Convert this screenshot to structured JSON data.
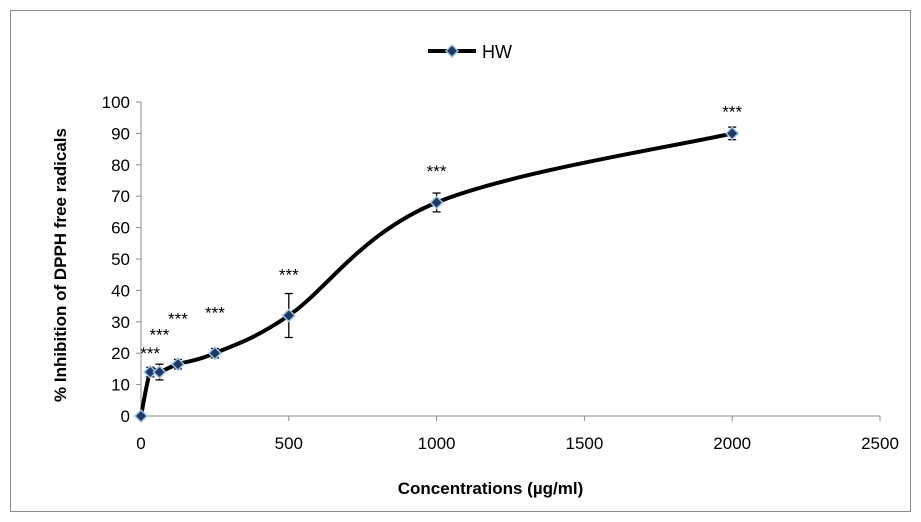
{
  "chart_data": {
    "type": "line",
    "xlabel": "Concentrations (µg/ml)",
    "ylabel": "% Inhibition of DPPH free radicals",
    "xlim": [
      0,
      2500
    ],
    "ylim": [
      0,
      100
    ],
    "xticks": [
      0,
      500,
      1000,
      1500,
      2000,
      2500
    ],
    "yticks": [
      0,
      10,
      20,
      30,
      40,
      50,
      60,
      70,
      80,
      90,
      100
    ],
    "grid": false,
    "legend": "top-center",
    "line_style": "smoothed",
    "series": [
      {
        "name": "HW",
        "color": "#000000",
        "marker": "diamond",
        "marker_fill": "#1f3864",
        "marker_edge": "#9dc3e6",
        "x": [
          0,
          31.25,
          62.5,
          125,
          250,
          500,
          1000,
          2000
        ],
        "y": [
          0,
          14,
          14,
          16.5,
          20,
          32,
          68,
          90
        ],
        "error": [
          0,
          1.5,
          2.5,
          1.5,
          1.5,
          7,
          3,
          2
        ]
      }
    ],
    "annotations": [
      {
        "text": "***",
        "x": 31.25,
        "y": 20
      },
      {
        "text": "***",
        "x": 62.5,
        "y": 26
      },
      {
        "text": "***",
        "x": 125,
        "y": 31
      },
      {
        "text": "***",
        "x": 250,
        "y": 33
      },
      {
        "text": "***",
        "x": 500,
        "y": 45
      },
      {
        "text": "***",
        "x": 1000,
        "y": 78
      },
      {
        "text": "***",
        "x": 2000,
        "y": 97
      }
    ]
  }
}
